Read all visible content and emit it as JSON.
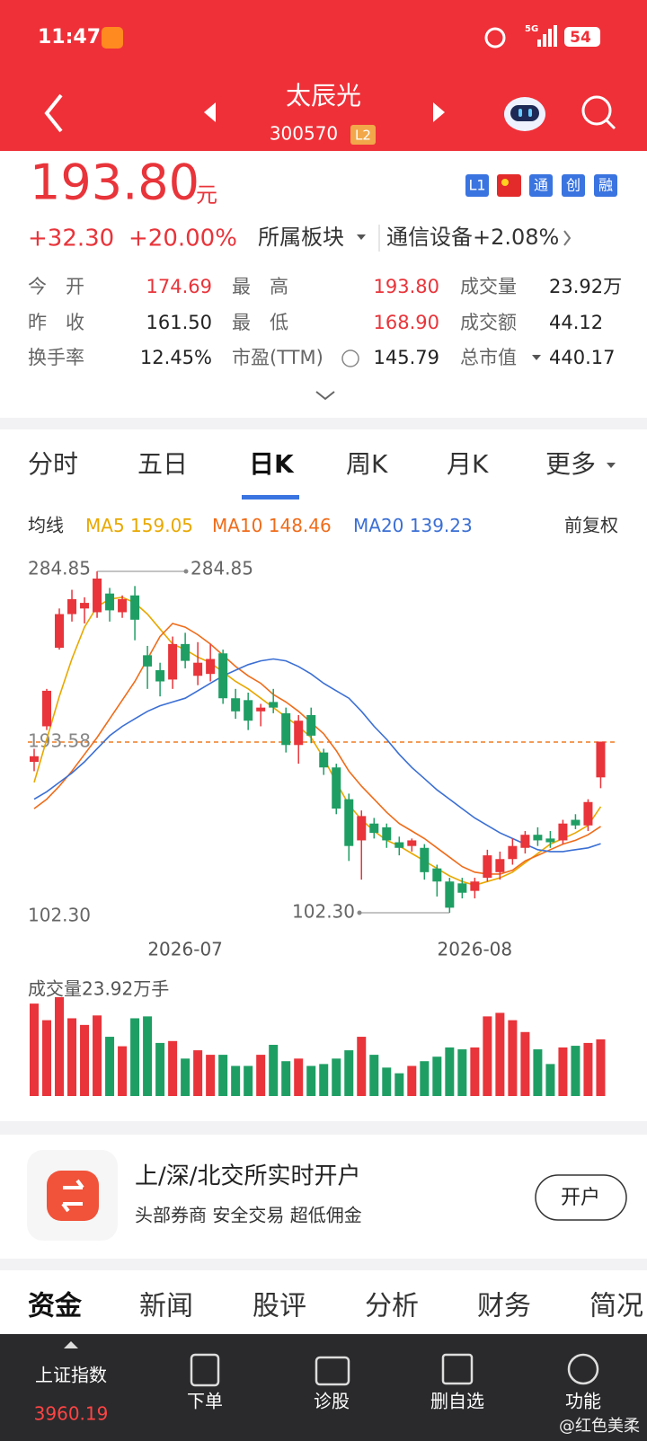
{
  "status_bar": {
    "time": "11:47",
    "network": "5G",
    "battery": "54"
  },
  "header": {
    "title": "太辰光",
    "code": "300570",
    "level": "L2"
  },
  "quote": {
    "price": "193.80",
    "unit": "元",
    "badges": [
      "L1",
      "通",
      "创",
      "融"
    ],
    "change": "+32.30",
    "change_pct": "+20.00%",
    "sector_label": "所属板块",
    "sector": "通信设备+2.08%",
    "stats": [
      [
        {
          "label": "今　开",
          "value": "174.69"
        },
        {
          "label": "最　高",
          "value": "193.80"
        },
        {
          "label": "成交量",
          "value": "23.92万"
        }
      ],
      [
        {
          "label": "昨　收",
          "value": "161.50"
        },
        {
          "label": "最　低",
          "value": "168.90"
        },
        {
          "label": "成交额",
          "value": "44.12"
        }
      ],
      [
        {
          "label": "换手率",
          "value": "12.45%"
        },
        {
          "label": "市盈(TTM)",
          "value": "145.79"
        },
        {
          "label": "总市值",
          "value": "440.17"
        }
      ]
    ]
  },
  "chart_tabs": [
    "分时",
    "五日",
    "日K",
    "周K",
    "月K",
    "更多"
  ],
  "kline": {
    "type": "candlestick",
    "legend_title": "均线",
    "adjust": "前复权",
    "up_color": "#e8343a",
    "down_color": "#1f9e64",
    "ylim": [
      102.3,
      284.85
    ],
    "yticks": [
      {
        "value": 102.3,
        "label": "102.30"
      },
      {
        "value": 284.85,
        "label": "284.85"
      }
    ],
    "ref_line": 193.58,
    "max_label": {
      "value": 284.85,
      "label": "284.85"
    },
    "min_label": {
      "value": 102.3,
      "label": "102.30"
    },
    "categories": [
      null,
      null,
      null,
      null,
      null,
      null,
      null,
      null,
      null,
      null,
      null,
      null,
      "2026-07",
      null,
      null,
      null,
      null,
      null,
      null,
      null,
      null,
      null,
      null,
      null,
      null,
      null,
      null,
      null,
      null,
      null,
      null,
      null,
      null,
      null,
      null,
      "2026-08",
      null,
      null,
      null,
      null,
      null,
      null,
      null,
      null,
      null,
      null
    ],
    "candles": [
      {
        "open": 183,
        "close": 186,
        "high": 190,
        "low": 178
      },
      {
        "open": 202,
        "close": 221,
        "high": 222,
        "low": 200
      },
      {
        "open": 244,
        "close": 262,
        "high": 265,
        "low": 243
      },
      {
        "open": 262,
        "close": 270,
        "high": 275,
        "low": 258
      },
      {
        "open": 265,
        "close": 268,
        "high": 271,
        "low": 257
      },
      {
        "open": 263,
        "close": 281,
        "high": 284.85,
        "low": 260
      },
      {
        "open": 273,
        "close": 264,
        "high": 276,
        "low": 258
      },
      {
        "open": 263,
        "close": 270,
        "high": 272,
        "low": 260
      },
      {
        "open": 272,
        "close": 259,
        "high": 277,
        "low": 248
      },
      {
        "open": 240,
        "close": 234,
        "high": 245,
        "low": 222
      },
      {
        "open": 232,
        "close": 226,
        "high": 236,
        "low": 218
      },
      {
        "open": 227,
        "close": 246,
        "high": 250,
        "low": 222
      },
      {
        "open": 246,
        "close": 237,
        "high": 252,
        "low": 233
      },
      {
        "open": 229,
        "close": 236,
        "high": 247,
        "low": 224
      },
      {
        "open": 230,
        "close": 238,
        "high": 246,
        "low": 226
      },
      {
        "open": 241,
        "close": 217,
        "high": 243,
        "low": 214
      },
      {
        "open": 217,
        "close": 210,
        "high": 222,
        "low": 206
      },
      {
        "open": 216,
        "close": 205,
        "high": 220,
        "low": 200
      },
      {
        "open": 210,
        "close": 212,
        "high": 214,
        "low": 202
      },
      {
        "open": 215,
        "close": 212,
        "high": 222,
        "low": 209
      },
      {
        "open": 209,
        "close": 192,
        "high": 212,
        "low": 188
      },
      {
        "open": 192,
        "close": 205,
        "high": 208,
        "low": 182
      },
      {
        "open": 208,
        "close": 197,
        "high": 212,
        "low": 193
      },
      {
        "open": 188,
        "close": 180,
        "high": 190,
        "low": 176
      },
      {
        "open": 180,
        "close": 158,
        "high": 182,
        "low": 155
      },
      {
        "open": 163,
        "close": 138,
        "high": 166,
        "low": 130
      },
      {
        "open": 141,
        "close": 154,
        "high": 157,
        "low": 120
      },
      {
        "open": 150,
        "close": 145,
        "high": 153,
        "low": 142
      },
      {
        "open": 148,
        "close": 141,
        "high": 150,
        "low": 137
      },
      {
        "open": 140,
        "close": 137,
        "high": 143,
        "low": 133
      },
      {
        "open": 138,
        "close": 141,
        "high": 142,
        "low": 135
      },
      {
        "open": 137,
        "close": 124,
        "high": 139,
        "low": 120
      },
      {
        "open": 126,
        "close": 119,
        "high": 128,
        "low": 111
      },
      {
        "open": 119,
        "close": 105,
        "high": 121,
        "low": 102.3
      },
      {
        "open": 118,
        "close": 113,
        "high": 121,
        "low": 110
      },
      {
        "open": 114,
        "close": 119,
        "high": 121,
        "low": 110
      },
      {
        "open": 121,
        "close": 133,
        "high": 136,
        "low": 119
      },
      {
        "open": 124,
        "close": 131,
        "high": 135,
        "low": 120
      },
      {
        "open": 131,
        "close": 138,
        "high": 142,
        "low": 128
      },
      {
        "open": 137,
        "close": 144,
        "high": 146,
        "low": 134
      },
      {
        "open": 144,
        "close": 141,
        "high": 148,
        "low": 138
      },
      {
        "open": 142,
        "close": 140,
        "high": 146,
        "low": 137
      },
      {
        "open": 141,
        "close": 150,
        "high": 152,
        "low": 139
      },
      {
        "open": 152,
        "close": 149,
        "high": 155,
        "low": 147
      },
      {
        "open": 149,
        "close": 161.5,
        "high": 163,
        "low": 146
      },
      {
        "open": 174.69,
        "close": 193.8,
        "high": 193.8,
        "low": 168.9
      }
    ],
    "ma": [
      {
        "name": "MA5",
        "color": "#e8a800",
        "values": [
          172,
          195,
          218,
          238,
          255,
          266,
          270,
          271,
          268,
          262,
          254,
          246,
          243,
          239,
          236,
          231,
          226,
          222,
          217,
          212,
          207,
          202,
          196,
          185,
          172,
          160,
          152,
          146,
          141,
          138,
          134,
          130,
          126,
          122,
          119,
          117,
          119,
          121,
          124,
          129,
          134,
          139,
          142,
          145,
          149,
          159.05
        ]
      },
      {
        "name": "MA10",
        "color": "#ef6c1a",
        "values": [
          158,
          163,
          170,
          178,
          187,
          196,
          206,
          216,
          226,
          238,
          250,
          257,
          255,
          251,
          246,
          240,
          234,
          229,
          225,
          219,
          215,
          210,
          204,
          198,
          189,
          178,
          170,
          163,
          156,
          150,
          146,
          142,
          137,
          132,
          127,
          124,
          123,
          123,
          125,
          130,
          133,
          136,
          139,
          141,
          144,
          148.46
        ]
      },
      {
        "name": "MA20",
        "color": "#3b6fd4",
        "values": [
          163,
          167,
          172,
          177,
          183,
          190,
          197,
          202,
          206,
          210,
          213,
          215,
          217,
          221,
          225,
          229,
          232,
          235,
          237,
          238,
          237,
          234,
          230,
          225,
          221,
          217,
          210,
          202,
          195,
          187,
          180,
          174,
          168,
          163,
          158,
          153,
          149,
          145,
          142,
          139,
          136,
          135,
          135,
          136,
          137,
          139.23
        ]
      }
    ],
    "volume_label": "成交量23.92万手",
    "volumes": [
      39,
      32,
      41.7,
      32.8,
      30,
      34,
      25,
      21,
      32.8,
      33.6,
      22.4,
      23.2,
      15.8,
      19.3,
      17.4,
      17.4,
      12.7,
      12.7,
      17.4,
      21.6,
      14.7,
      15.8,
      12.7,
      13.5,
      15.8,
      19.3,
      25,
      17.4,
      12,
      9.6,
      12.7,
      14.7,
      16.6,
      20.5,
      19.7,
      20.5,
      33.6,
      35.1,
      32,
      27,
      19.7,
      13.5,
      20.5,
      21.2,
      22.4,
      23.92
    ]
  },
  "ad": {
    "title": "上/深/北交所实时开户",
    "subtitle": "头部券商 安全交易 超低佣金",
    "button": "开户"
  },
  "section_tabs": [
    "资金",
    "新闻",
    "股评",
    "分析",
    "财务",
    "简况"
  ],
  "nav": {
    "index_name": "上证指数",
    "index_value": "3960.19",
    "items": [
      "下单",
      "诊股",
      "删自选",
      "功能"
    ]
  },
  "watermark": "@红色美柔"
}
